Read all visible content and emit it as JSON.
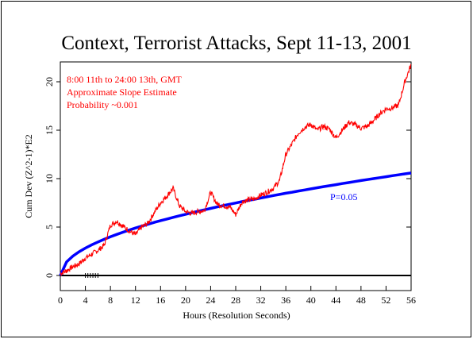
{
  "chart_data": {
    "type": "line",
    "title": "Context, Terrorist Attacks, Sept 11-13, 2001",
    "xlabel": "Hours (Resolution Seconds)",
    "ylabel": "Cum Dev (Z^2-1)*E2",
    "xlim": [
      0,
      56
    ],
    "ylim": [
      0,
      22
    ],
    "xticks": [
      "0",
      "4",
      "8",
      "12",
      "16",
      "20",
      "24",
      "28",
      "32",
      "36",
      "40",
      "44",
      "48",
      "52",
      "56"
    ],
    "yticks": [
      "0",
      "5",
      "10",
      "15",
      "20"
    ],
    "annotations": [
      "8:00 11th to 24:00 13th, GMT",
      "Approximate Slope Estimate",
      "Probability ~0.001"
    ],
    "colors": {
      "data": "#ff0000",
      "envelope": "#0000ff",
      "axes": "#000000"
    },
    "series": [
      {
        "role": "cumulative-deviation",
        "color": "#ff0000",
        "x": [
          0,
          1,
          2,
          3,
          4,
          5,
          6,
          7,
          8,
          9,
          10,
          11,
          12,
          13,
          14,
          15,
          16,
          17,
          18,
          19,
          20,
          21,
          22,
          23,
          24,
          25,
          26,
          27,
          28,
          29,
          30,
          31,
          32,
          33,
          34,
          35,
          36,
          37,
          38,
          39,
          40,
          41,
          42,
          43,
          44,
          45,
          46,
          47,
          48,
          49,
          50,
          51,
          52,
          53,
          54,
          55,
          56
        ],
        "y": [
          0.2,
          0.5,
          0.9,
          1.2,
          1.8,
          2.2,
          2.6,
          3.1,
          5.2,
          5.6,
          5.1,
          4.6,
          4.2,
          5.0,
          5.4,
          6.5,
          7.5,
          8.2,
          9.0,
          7.2,
          6.6,
          6.4,
          6.6,
          6.7,
          8.6,
          7.4,
          7.2,
          7.1,
          6.3,
          7.6,
          7.8,
          7.9,
          8.3,
          8.6,
          9.0,
          9.8,
          12.5,
          13.6,
          14.7,
          15.3,
          15.6,
          15.0,
          15.4,
          15.1,
          14.2,
          15.0,
          15.8,
          15.6,
          15.2,
          15.4,
          16.0,
          16.7,
          17.2,
          17.3,
          17.6,
          20.0,
          21.8
        ]
      },
      {
        "name": "P=0.05",
        "color": "#0000ff",
        "role": "significance-envelope",
        "x": [
          0,
          1,
          2,
          3,
          4,
          5,
          6,
          7,
          8,
          9,
          10,
          11,
          12,
          13,
          14,
          15,
          16,
          17,
          18,
          19,
          20,
          21,
          22,
          23,
          24,
          25,
          26,
          27,
          28,
          29,
          30,
          31,
          32,
          33,
          34,
          35,
          36,
          37,
          38,
          39,
          40,
          41,
          42,
          43,
          44,
          45,
          46,
          47,
          48,
          49,
          50,
          51,
          52,
          53,
          54,
          55,
          56
        ],
        "y": [
          0.0,
          1.4,
          2.0,
          2.45,
          2.83,
          3.16,
          3.46,
          3.74,
          4.0,
          4.24,
          4.47,
          4.69,
          4.9,
          5.1,
          5.29,
          5.48,
          5.66,
          5.83,
          6.0,
          6.16,
          6.32,
          6.48,
          6.63,
          6.78,
          6.93,
          7.07,
          7.21,
          7.35,
          7.48,
          7.62,
          7.75,
          7.87,
          8.0,
          8.12,
          8.25,
          8.37,
          8.49,
          8.6,
          8.72,
          8.83,
          8.94,
          9.06,
          9.17,
          9.27,
          9.38,
          9.49,
          9.59,
          9.7,
          9.8,
          9.9,
          10.0,
          10.1,
          10.2,
          10.3,
          10.39,
          10.49,
          10.58
        ]
      }
    ],
    "markers": {
      "label": "event-markers",
      "x_range": [
        4,
        6
      ],
      "y": 0
    }
  }
}
